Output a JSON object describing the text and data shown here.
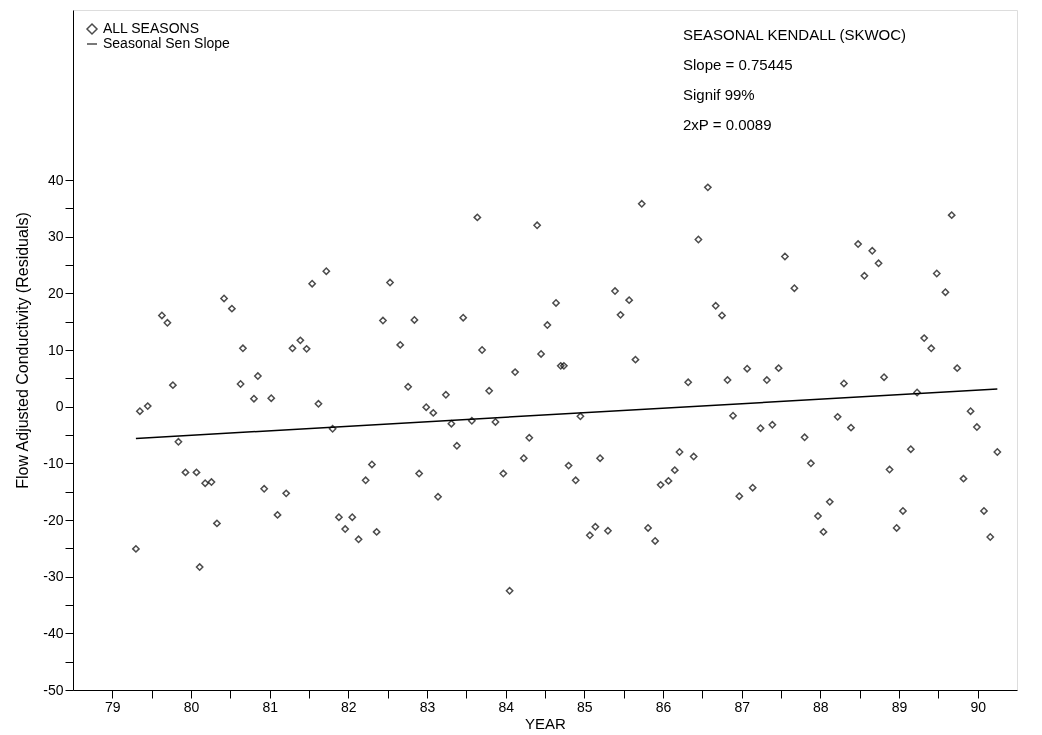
{
  "chart_data": {
    "type": "scatter",
    "xlabel": "YEAR",
    "ylabel": "Flow Adjusted Conductivity (Residuals)",
    "annotations": [
      "SEASONAL KENDALL (SKWOC)",
      "Slope = 0.75445",
      "Signif 99%",
      "2xP = 0.0089"
    ],
    "xlim": [
      78.5,
      90.5
    ],
    "ylim": [
      -50,
      70
    ],
    "xticks": [
      79,
      {
        "value": 79.5,
        "label": null
      },
      80,
      {
        "value": 80.5,
        "label": null
      },
      81,
      {
        "value": 81.5,
        "label": null
      },
      82,
      {
        "value": 82.5,
        "label": null
      },
      83,
      {
        "value": 83.5,
        "label": null
      },
      84,
      {
        "value": 84.5,
        "label": null
      },
      85,
      {
        "value": 85.5,
        "label": null
      },
      86,
      {
        "value": 86.5,
        "label": null
      },
      87,
      {
        "value": 87.5,
        "label": null
      },
      88,
      {
        "value": 88.5,
        "label": null
      },
      89,
      {
        "value": 89.5,
        "label": null
      },
      90
    ],
    "yticks": [
      -50,
      {
        "value": -45,
        "label": null
      },
      -40,
      {
        "value": -35,
        "label": null
      },
      -30,
      {
        "value": -25,
        "label": null
      },
      -20,
      {
        "value": -15,
        "label": null
      },
      -10,
      {
        "value": -5,
        "label": null
      },
      0,
      {
        "value": 5,
        "label": null
      },
      10,
      {
        "value": 15,
        "label": null
      },
      20,
      {
        "value": 25,
        "label": null
      },
      30,
      {
        "value": 35,
        "label": null
      },
      40
    ],
    "grid": false,
    "legend": "top left",
    "series": [
      {
        "name": "ALL SEASONS",
        "type": "scatter",
        "marker": "diamond",
        "color": "#000000",
        "x": [
          79.3,
          79.35,
          79.45,
          79.63,
          79.7,
          79.77,
          79.84,
          79.93,
          80.07,
          80.11,
          80.18,
          80.26,
          80.33,
          80.42,
          80.52,
          80.63,
          80.66,
          80.8,
          80.85,
          80.93,
          81.02,
          81.1,
          81.21,
          81.29,
          81.39,
          81.47,
          81.54,
          81.62,
          81.72,
          81.8,
          81.88,
          81.96,
          82.05,
          82.13,
          82.22,
          82.3,
          82.36,
          82.44,
          82.53,
          82.66,
          82.76,
          82.84,
          82.9,
          82.99,
          83.08,
          83.14,
          83.24,
          83.31,
          83.38,
          83.46,
          83.57,
          83.64,
          83.7,
          83.79,
          83.87,
          83.97,
          84.05,
          84.12,
          84.23,
          84.3,
          84.4,
          84.45,
          84.53,
          84.64,
          84.7,
          84.74,
          84.8,
          84.89,
          84.95,
          85.07,
          85.14,
          85.2,
          85.3,
          85.39,
          85.46,
          85.57,
          85.65,
          85.73,
          85.81,
          85.9,
          85.97,
          86.07,
          86.15,
          86.21,
          86.32,
          86.39,
          86.45,
          86.57,
          86.67,
          86.75,
          86.82,
          86.89,
          86.97,
          87.07,
          87.14,
          87.24,
          87.32,
          87.39,
          87.47,
          87.55,
          87.67,
          87.8,
          87.88,
          87.97,
          88.04,
          88.12,
          88.22,
          88.3,
          88.39,
          88.48,
          88.56,
          88.66,
          88.74,
          88.81,
          88.88,
          88.97,
          89.05,
          89.15,
          89.23,
          89.32,
          89.41,
          89.48,
          89.59,
          89.67,
          89.74,
          89.82,
          89.91,
          89.99,
          90.08,
          90.16,
          90.25
        ],
        "values": [
          -25.1,
          -0.8,
          0.1,
          16.1,
          14.8,
          3.8,
          -6.2,
          -11.6,
          -11.6,
          -28.3,
          -13.5,
          -13.3,
          -20.6,
          19.1,
          17.3,
          4.0,
          10.3,
          1.4,
          5.4,
          -14.5,
          1.5,
          -19.1,
          -15.3,
          10.3,
          11.7,
          10.2,
          21.7,
          0.5,
          23.9,
          -3.9,
          -19.5,
          -21.6,
          -19.5,
          -23.4,
          -13.0,
          -10.2,
          -22.1,
          15.2,
          21.9,
          10.9,
          3.5,
          15.3,
          -11.8,
          -0.1,
          -1.1,
          -15.9,
          2.1,
          -3.0,
          -6.9,
          15.7,
          -2.5,
          33.4,
          10.0,
          2.8,
          -2.7,
          -11.8,
          -32.5,
          6.1,
          -9.1,
          -5.5,
          32.0,
          9.3,
          14.4,
          18.3,
          7.2,
          7.2,
          -10.4,
          -13.0,
          -1.7,
          -22.7,
          -21.2,
          -9.1,
          -21.9,
          20.4,
          16.2,
          18.8,
          8.3,
          35.8,
          -21.4,
          -23.7,
          -13.8,
          -13.1,
          -11.2,
          -8.0,
          4.3,
          -8.8,
          29.5,
          38.7,
          17.8,
          16.1,
          4.7,
          -1.6,
          -15.8,
          6.7,
          -14.3,
          -3.8,
          4.7,
          -3.2,
          6.8,
          26.5,
          20.9,
          -5.4,
          -10.0,
          -19.3,
          -22.1,
          -16.8,
          -1.8,
          4.1,
          -3.7,
          28.7,
          23.1,
          27.5,
          25.3,
          5.2,
          -11.1,
          -21.4,
          -18.4,
          -7.5,
          2.5,
          12.1,
          10.3,
          23.5,
          20.2,
          33.8,
          6.8,
          -12.7,
          -0.8,
          -3.6,
          -18.4,
          -23.0,
          -8.0
        ]
      },
      {
        "name": "Seasonal Sen Slope",
        "type": "line",
        "color": "#000000",
        "x": [
          79.3,
          90.25
        ],
        "values": [
          -5.6,
          3.1
        ]
      }
    ]
  }
}
